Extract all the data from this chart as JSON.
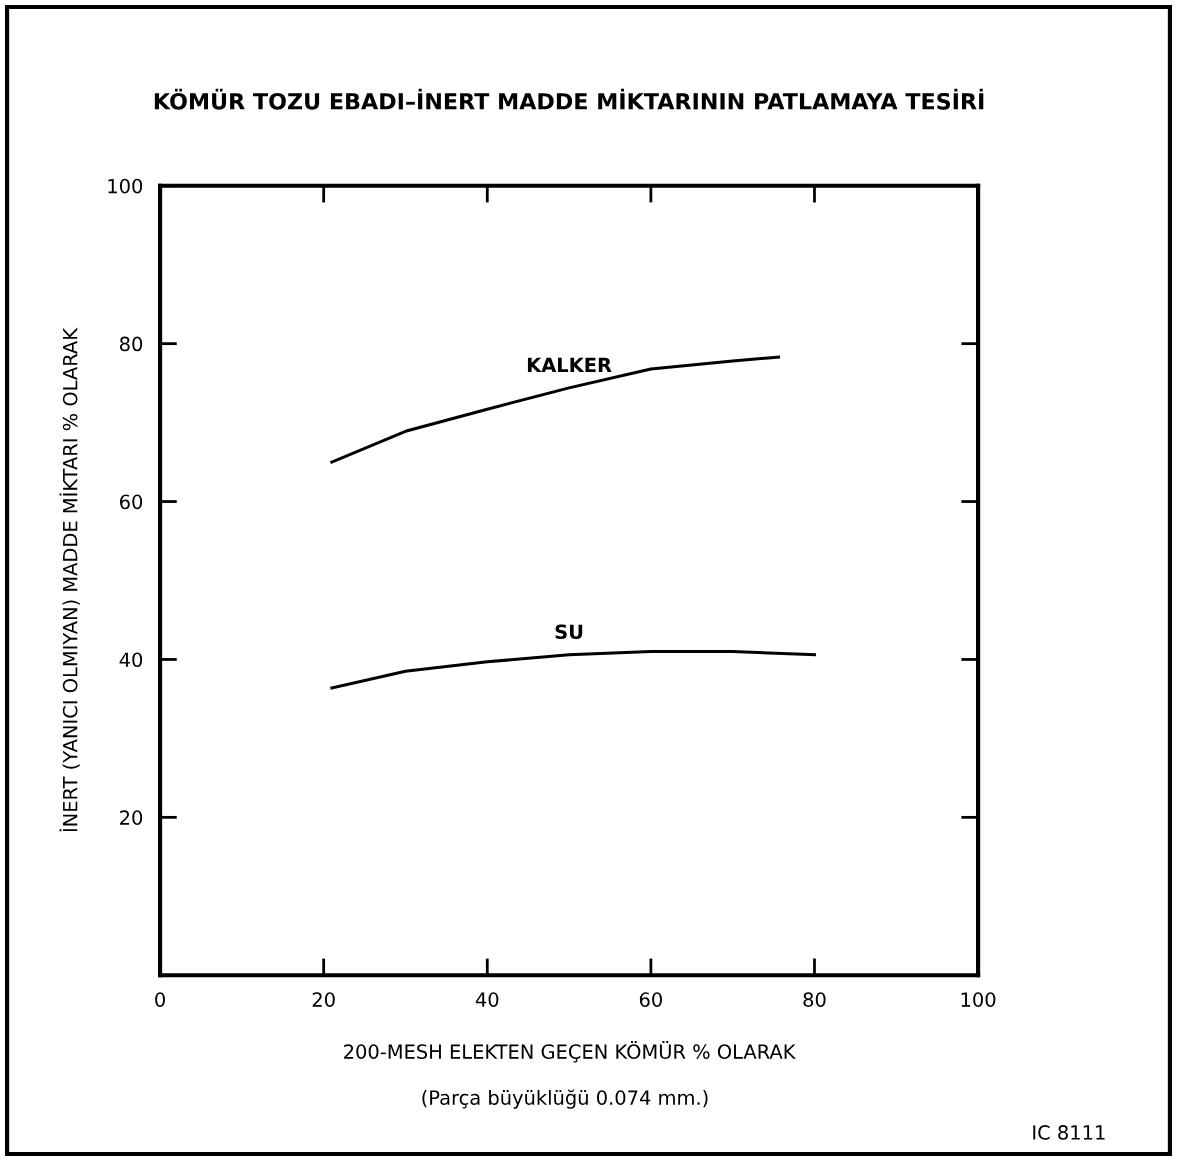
{
  "chart_data": {
    "type": "line",
    "title": "KÖMÜR TOZU EBADI–İNERT MADDE MİKTARININ PATLAMAYA TESİRİ",
    "xlabel": "200-MESH ELEKTEN GEÇEN KÖMÜR % OLARAK",
    "ylabel": "İNERT (YANICI OLMIYAN) MADDE MİKTARI % OLARAK",
    "annotations": [
      "(Parça büyüklüğü 0.074 mm.)",
      "IC 8111"
    ],
    "series": [
      {
        "name": "KALKER",
        "color": "#000000",
        "x": [
          21,
          30,
          40,
          50,
          60,
          70,
          75.6
        ],
        "values": [
          65,
          68.9,
          71.7,
          74.4,
          76.8,
          77.8,
          78.3
        ]
      },
      {
        "name": "SU",
        "color": "#000000",
        "x": [
          21,
          30,
          40,
          50,
          60,
          70,
          80
        ],
        "values": [
          36.4,
          38.5,
          39.7,
          40.6,
          41.0,
          41.0,
          40.6
        ]
      }
    ],
    "xlim": [
      0,
      100
    ],
    "ylim": [
      0,
      100
    ],
    "xticks": [
      0,
      20,
      40,
      60,
      80,
      100
    ],
    "yticks": [
      20,
      40,
      60,
      80,
      100
    ],
    "grid": false,
    "legend": false,
    "marker": "none",
    "line_style": "solid"
  }
}
